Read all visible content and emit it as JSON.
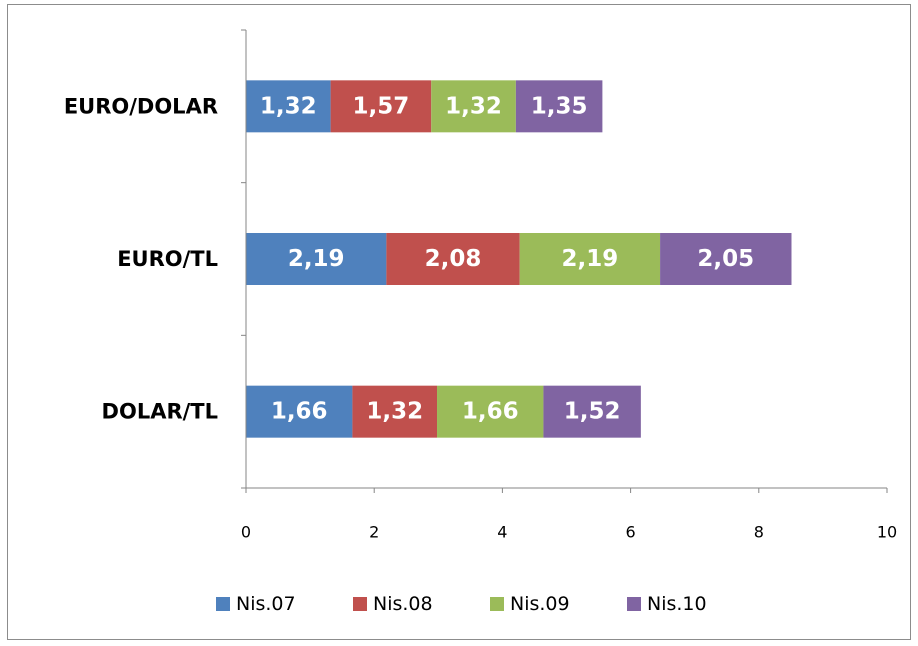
{
  "chart_data": {
    "type": "bar",
    "orientation": "horizontal",
    "stacked": true,
    "categories": [
      "DOLAR/TL",
      "EURO/TL",
      "EURO/DOLAR"
    ],
    "series": [
      {
        "name": "Nis.07",
        "color": "#4F81BD",
        "values": [
          1.66,
          2.19,
          1.32
        ],
        "labels": [
          "1,66",
          "2,19",
          "1,32"
        ]
      },
      {
        "name": "Nis.08",
        "color": "#C0504D",
        "values": [
          1.32,
          2.08,
          1.57
        ],
        "labels": [
          "1,32",
          "2,08",
          "1,57"
        ]
      },
      {
        "name": "Nis.09",
        "color": "#9BBB59",
        "values": [
          1.66,
          2.19,
          1.32
        ],
        "labels": [
          "1,66",
          "2,19",
          "1,32"
        ]
      },
      {
        "name": "Nis.10",
        "color": "#8064A2",
        "values": [
          1.52,
          2.05,
          1.35
        ],
        "labels": [
          "1,52",
          "2,05",
          "1,35"
        ]
      }
    ],
    "xlim": [
      0,
      10
    ],
    "xticks": [
      "0",
      "2",
      "4",
      "6",
      "8",
      "10"
    ],
    "grid": false,
    "legend_position": "bottom"
  }
}
